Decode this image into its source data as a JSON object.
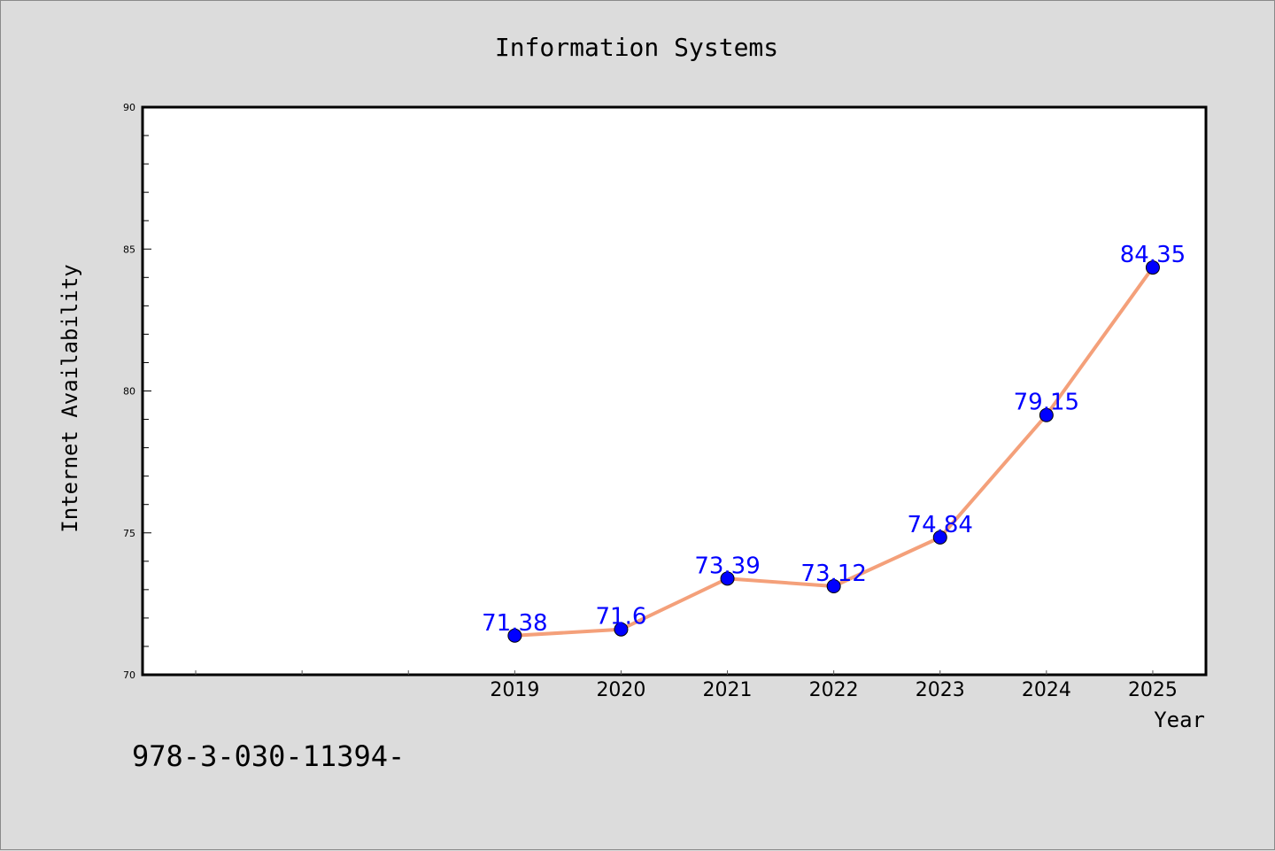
{
  "chart_data": {
    "type": "line",
    "title": "Information Systems",
    "xlabel": "Year",
    "ylabel": "Internet Availability",
    "x": [
      "2019",
      "2020",
      "2021",
      "2022",
      "2023",
      "2024",
      "2025"
    ],
    "x_numeric": [
      2019,
      2020,
      2021,
      2022,
      2023,
      2024,
      2025
    ],
    "xlim": [
      2015.5,
      2025.5
    ],
    "series": [
      {
        "values": [
          71.38,
          71.6,
          73.39,
          73.12,
          74.84,
          79.15,
          84.35
        ],
        "data_labels": [
          "71.38",
          "71.6",
          "73.39",
          "73.12",
          "74.84",
          "79.15",
          "84.35"
        ],
        "line_color": "#f4a07a",
        "marker_color": "#0000ff",
        "label_color": "#0000ff"
      }
    ],
    "ylim": [
      70,
      90
    ],
    "y_ticks": [
      70,
      75,
      80,
      85,
      90
    ],
    "y_tick_labels": [
      "70",
      "75",
      "80",
      "85",
      "90"
    ],
    "grid": false,
    "annotation": "978-3-030-11394-"
  },
  "colors": {
    "background": "#dcdcdc",
    "plot_area": "#ffffff",
    "axis": "#000000"
  }
}
